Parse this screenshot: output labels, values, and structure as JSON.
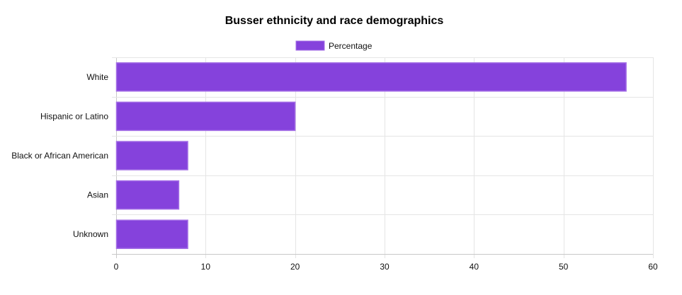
{
  "chart_data": {
    "type": "bar",
    "orientation": "horizontal",
    "title": "Busser ethnicity and race demographics",
    "categories": [
      "White",
      "Hispanic or Latino",
      "Black or African American",
      "Asian",
      "Unknown"
    ],
    "series": [
      {
        "name": "Percentage",
        "values": [
          57,
          20,
          8,
          7,
          8
        ]
      }
    ],
    "xlim": [
      0,
      60
    ],
    "xticks": [
      0,
      10,
      20,
      30,
      40,
      50,
      60
    ],
    "grid": true,
    "legend": "top-center",
    "colors": {
      "bar_fill": "#8542dc",
      "bar_border": "#a46fe6"
    }
  }
}
